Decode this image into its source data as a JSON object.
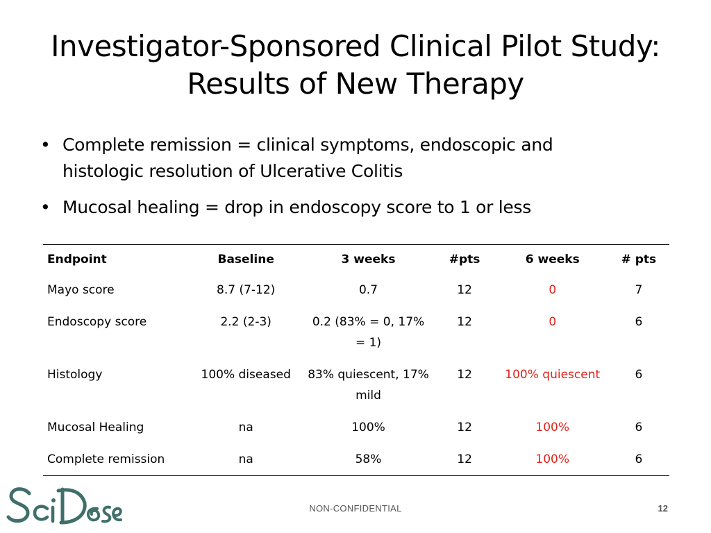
{
  "slide": {
    "title_line1": "Investigator-Sponsored Clinical Pilot Study:",
    "title_line2": "Results of New Therapy",
    "bullets": [
      {
        "symbol": "•",
        "text_line1": "Complete remission = clinical symptoms, endoscopic and",
        "text_line2": "histologic resolution of Ulcerative Colitis"
      },
      {
        "symbol": "•",
        "text_line1": "Mucosal healing = drop in endoscopy score to 1 or less",
        "text_line2": ""
      }
    ]
  },
  "table": {
    "headers": [
      "Endpoint",
      "Baseline",
      "3 weeks",
      "#pts",
      "6 weeks",
      "# pts"
    ],
    "rows": [
      [
        "Mayo score",
        "8.7 (7-12)",
        "0.7",
        "12",
        "0",
        "7"
      ],
      [
        "Endoscopy score",
        "2.2 (2-3)",
        "0.2 (83% = 0, 17% = 1)",
        "12",
        "0",
        "6"
      ],
      [
        "Histology",
        "100% diseased",
        "83% quiescent, 17% mild",
        "12",
        "100% quiescent",
        "6"
      ],
      [
        "Mucosal Healing",
        "na",
        "100%",
        "12",
        "100%",
        "6"
      ],
      [
        "Complete remission",
        "na",
        "58%",
        "12",
        "100%",
        "6"
      ]
    ]
  },
  "footer": {
    "label": "NON-CONFIDENTIAL",
    "page_number": "12"
  },
  "logo": {
    "text": "SciDose",
    "color": "#3f6f6a"
  },
  "colors": {
    "highlight": "#e0231b",
    "footer_text": "#555555"
  }
}
